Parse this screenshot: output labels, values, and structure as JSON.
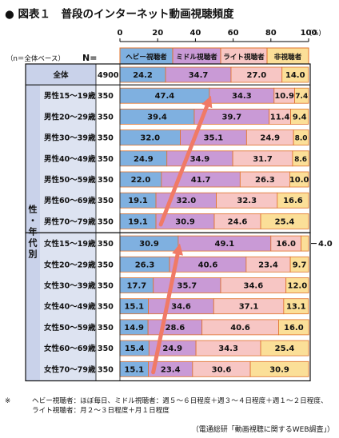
{
  "title": "● 図表１　普段のインターネット動画視聴頻度",
  "chart_data": {
    "type": "bar",
    "orientation": "horizontal",
    "stacked": true,
    "percent_stacked": true,
    "x_ticks": [
      "0",
      "20",
      "40",
      "60",
      "80",
      "100"
    ],
    "x_unit": "(%)",
    "xlim": [
      0,
      100
    ],
    "base_label": "（n＝全体ベース）",
    "n_header": "N=",
    "group_label": "性・年代別",
    "series": [
      {
        "name": "ヘビー視聴者",
        "color": "#7fb0e0"
      },
      {
        "name": "ミドル視聴者",
        "color": "#c99ad6"
      },
      {
        "name": "ライト視聴者",
        "color": "#f7c6c4"
      },
      {
        "name": "非視聴者",
        "color": "#fbdf98"
      }
    ],
    "rows": [
      {
        "label": "全体",
        "n": "4900",
        "values": [
          24.2,
          34.7,
          27.0,
          14.0
        ]
      },
      {
        "label": "男性15～19歳",
        "n": "350",
        "values": [
          47.4,
          34.3,
          10.9,
          7.4
        ]
      },
      {
        "label": "男性20～29歳",
        "n": "350",
        "values": [
          39.4,
          39.7,
          11.4,
          9.4
        ]
      },
      {
        "label": "男性30～39歳",
        "n": "350",
        "values": [
          32.0,
          35.1,
          24.9,
          8.0
        ]
      },
      {
        "label": "男性40～49歳",
        "n": "350",
        "values": [
          24.9,
          34.9,
          31.7,
          8.6
        ]
      },
      {
        "label": "男性50～59歳",
        "n": "350",
        "values": [
          22.0,
          41.7,
          26.3,
          10.0
        ]
      },
      {
        "label": "男性60～69歳",
        "n": "350",
        "values": [
          19.1,
          32.0,
          32.3,
          16.6
        ]
      },
      {
        "label": "男性70～79歳",
        "n": "350",
        "values": [
          19.1,
          30.9,
          24.6,
          25.4
        ]
      },
      {
        "label": "女性15～19歳",
        "n": "350",
        "values": [
          30.9,
          49.1,
          16.0,
          4.0
        ]
      },
      {
        "label": "女性20～29歳",
        "n": "350",
        "values": [
          26.3,
          40.6,
          23.4,
          9.7
        ]
      },
      {
        "label": "女性30～39歳",
        "n": "350",
        "values": [
          17.7,
          35.7,
          34.6,
          12.0
        ]
      },
      {
        "label": "女性40～49歳",
        "n": "350",
        "values": [
          15.1,
          34.6,
          37.1,
          13.1
        ]
      },
      {
        "label": "女性50～59歳",
        "n": "350",
        "values": [
          14.9,
          28.6,
          40.6,
          16.0
        ]
      },
      {
        "label": "女性60～69歳",
        "n": "350",
        "values": [
          15.4,
          24.9,
          34.3,
          25.4
        ]
      },
      {
        "label": "女性70～79歳",
        "n": "350",
        "values": [
          15.1,
          23.4,
          30.6,
          30.9
        ]
      }
    ],
    "callout_value": "4.0",
    "trend_arrows": [
      {
        "from_row": 7,
        "to_row": 1,
        "color": "#f07a66"
      },
      {
        "from_row": 14,
        "to_row": 8,
        "color": "#f07a66"
      }
    ]
  },
  "footnote": {
    "mark": "※",
    "text": "ヘビー視聴者：ほぼ毎日、ミドル視聴者：週５～６日程度＋週３～４日程度＋週１～２日程度、ライト視聴者：月２～３日程度＋月１日程度"
  },
  "source": "（電通総研「動画視聴に関するWEB調査」）"
}
